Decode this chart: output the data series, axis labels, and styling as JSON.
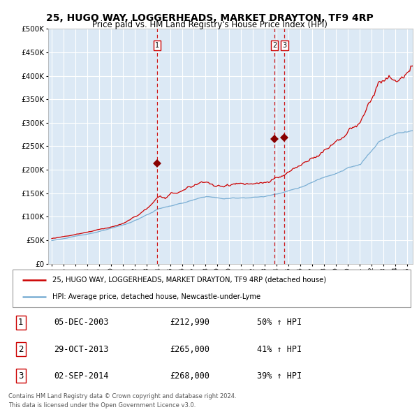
{
  "title": "25, HUGO WAY, LOGGERHEADS, MARKET DRAYTON, TF9 4RP",
  "subtitle": "Price paid vs. HM Land Registry's House Price Index (HPI)",
  "plot_bg_color": "#dce9f5",
  "grid_color": "#ffffff",
  "red_line_color": "#cc0000",
  "blue_line_color": "#7bafd4",
  "dashed_vline_color": "#cc0000",
  "marker_color": "#880000",
  "ylim": [
    0,
    500000
  ],
  "yticks": [
    0,
    50000,
    100000,
    150000,
    200000,
    250000,
    300000,
    350000,
    400000,
    450000,
    500000
  ],
  "sale1_date": 2003.92,
  "sale1_price": 212990,
  "sale2_date": 2013.83,
  "sale2_price": 265000,
  "sale3_date": 2014.67,
  "sale3_price": 268000,
  "legend_red": "25, HUGO WAY, LOGGERHEADS, MARKET DRAYTON, TF9 4RP (detached house)",
  "legend_blue": "HPI: Average price, detached house, Newcastle-under-Lyme",
  "table_data": [
    {
      "num": "1",
      "date": "05-DEC-2003",
      "price": "£212,990",
      "hpi": "50% ↑ HPI"
    },
    {
      "num": "2",
      "date": "29-OCT-2013",
      "price": "£265,000",
      "hpi": "41% ↑ HPI"
    },
    {
      "num": "3",
      "date": "02-SEP-2014",
      "price": "£268,000",
      "hpi": "39% ↑ HPI"
    }
  ],
  "footer": "Contains HM Land Registry data © Crown copyright and database right 2024.\nThis data is licensed under the Open Government Licence v3.0.",
  "xstart": 1994.7,
  "xend": 2025.5
}
